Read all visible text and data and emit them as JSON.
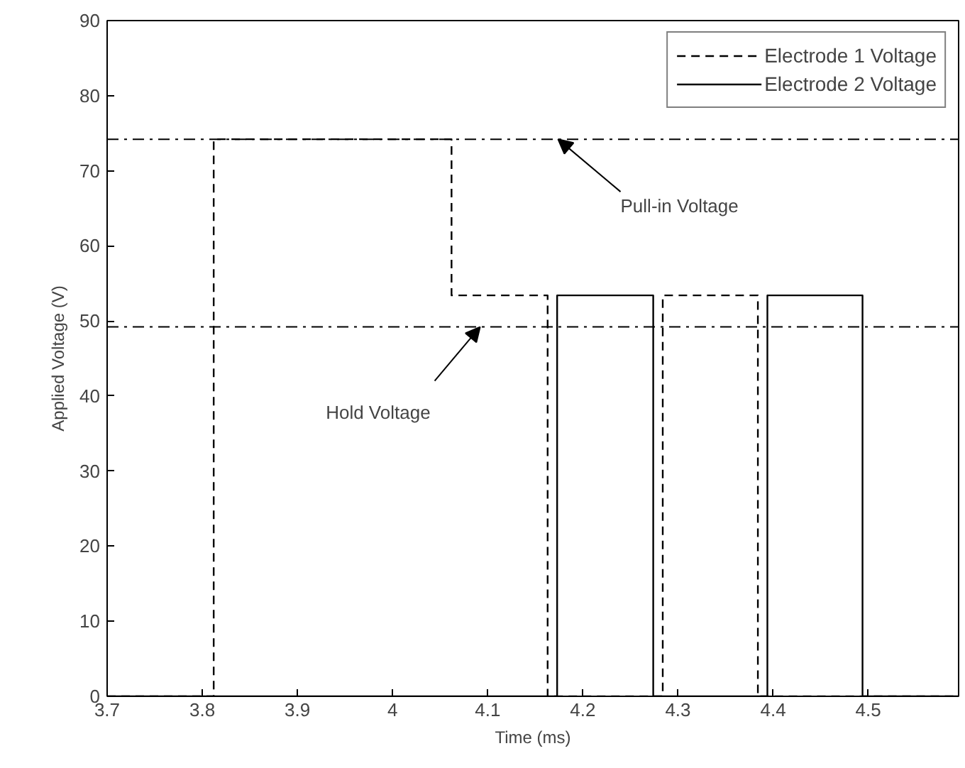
{
  "chart_data": {
    "type": "line",
    "xlabel": "Time (ms)",
    "ylabel": "Applied Voltage (V)",
    "xlim": [
      3.7,
      4.595
    ],
    "ylim": [
      0,
      90
    ],
    "xticks": [
      3.7,
      3.8,
      3.9,
      4,
      4.1,
      4.2,
      4.3,
      4.4,
      4.5
    ],
    "yticks": [
      0,
      10,
      20,
      30,
      40,
      50,
      60,
      70,
      80,
      90
    ],
    "grid": false,
    "legend": "top right",
    "marker": "none",
    "series": [
      {
        "name": "Electrode 1 Voltage",
        "color": "#000000",
        "line_style": "dashed",
        "x": [
          3.7,
          3.812,
          3.812,
          4.062,
          4.062,
          4.163,
          4.163,
          4.284,
          4.284,
          4.384,
          4.384,
          4.595
        ],
        "values": [
          0,
          0,
          74.2,
          74.2,
          53.4,
          53.4,
          0,
          0,
          53.4,
          53.4,
          0,
          0
        ]
      },
      {
        "name": "Electrode 2 Voltage",
        "color": "#000000",
        "line_style": "solid",
        "x": [
          3.7,
          4.173,
          4.173,
          4.274,
          4.274,
          4.394,
          4.394,
          4.494,
          4.494,
          4.595
        ],
        "values": [
          0,
          0,
          53.4,
          53.4,
          0,
          0,
          53.4,
          53.4,
          0,
          0
        ]
      }
    ],
    "ref_lines": [
      {
        "axis": "y",
        "value": 74.2,
        "color": "#000000",
        "line_style": "dashdot"
      },
      {
        "axis": "y",
        "value": 49.2,
        "color": "#000000",
        "line_style": "dashdot"
      }
    ],
    "annotations": [
      {
        "text": "Pull-in Voltage",
        "x": 4.174,
        "y": 74.2
      },
      {
        "text": "Hold Voltage",
        "x": 4.092,
        "y": 49.2
      }
    ]
  }
}
